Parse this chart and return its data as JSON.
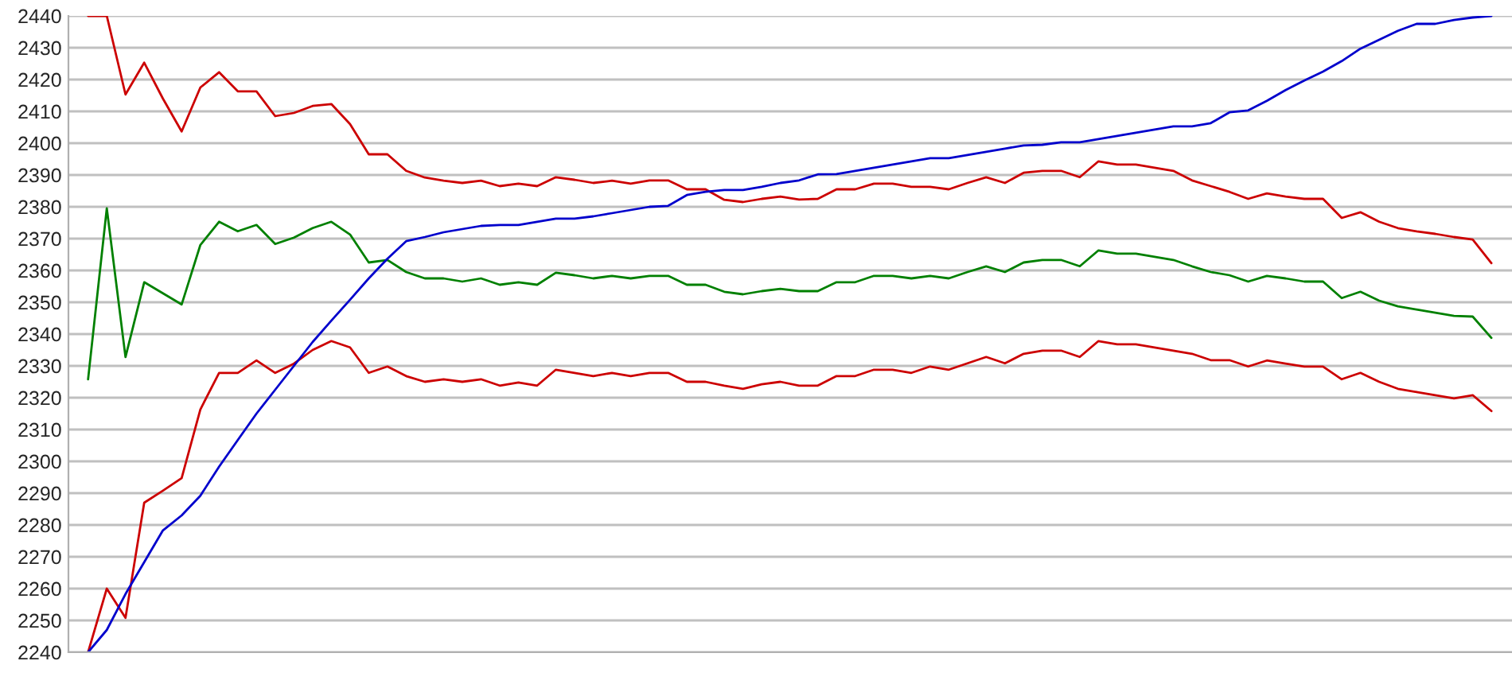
{
  "chart_data": {
    "type": "line",
    "categories": [
      null,
      null,
      null,
      null,
      null,
      null,
      null,
      null,
      null,
      null,
      null,
      null,
      null,
      null,
      null,
      null,
      null,
      null,
      null,
      null,
      null,
      null,
      null,
      null,
      null,
      null,
      null,
      null,
      null,
      null,
      null,
      null,
      null,
      null,
      null,
      null,
      null,
      null,
      null,
      null,
      null,
      null,
      null,
      null,
      null,
      null,
      null,
      null,
      null,
      null,
      null,
      null,
      null,
      null,
      null,
      null,
      null,
      null,
      null,
      null,
      null,
      null,
      null,
      null,
      null,
      null,
      null,
      null,
      null,
      null,
      null,
      null,
      null,
      null,
      null,
      null
    ],
    "ylim": [
      2240,
      2440
    ],
    "yticks": [
      2240,
      2250,
      2260,
      2270,
      2280,
      2290,
      2300,
      2310,
      2320,
      2330,
      2340,
      2350,
      2360,
      2370,
      2380,
      2390,
      2400,
      2410,
      2420,
      2430,
      2440
    ],
    "grid": "y",
    "tick_labels": "y",
    "marker": "none",
    "line_style": "solid",
    "series": [
      {
        "color": "#cc0000",
        "values": [
          2440,
          2440,
          2415.3,
          2425.3,
          2414,
          2403.7,
          2417.5,
          2422.3,
          2416.3,
          2416.3,
          2408.5,
          2409.5,
          2411.7,
          2412.3,
          2406,
          2396.5,
          2396.5,
          2391.3,
          2389.2,
          2388.2,
          2387.5,
          2388.2,
          2386.5,
          2387.3,
          2386.5,
          2389.3,
          2388.5,
          2387.5,
          2388.2,
          2387.3,
          2388.3,
          2388.3,
          2385.5,
          2385.5,
          2382.2,
          2381.5,
          2382.5,
          2383.2,
          2382.3,
          2382.5,
          2385.5,
          2385.5,
          2387.3,
          2387.3,
          2386.3,
          2386.3,
          2385.5,
          2387.5,
          2389.3,
          2387.5,
          2390.7,
          2391.3,
          2391.3,
          2389.3,
          2394.3,
          2393.3,
          2393.3,
          2392.3,
          2391.3,
          2388.3,
          2386.5,
          2384.7,
          2382.5,
          2384.2,
          2383.2,
          2382.5,
          2382.5,
          2376.5,
          2378.3,
          2375.3,
          2373.3,
          2372.3,
          2371.5,
          2370.5,
          2369.7,
          2362.3
        ]
      },
      {
        "color": "#008000",
        "values": [
          2325.8,
          2379.5,
          2332.8,
          2356.3,
          2352.8,
          2349.3,
          2368,
          2375.3,
          2372.3,
          2374.3,
          2368.3,
          2370.3,
          2373.3,
          2375.3,
          2371.3,
          2362.5,
          2363.3,
          2359.5,
          2357.5,
          2357.5,
          2356.5,
          2357.5,
          2355.5,
          2356.3,
          2355.5,
          2359.3,
          2358.5,
          2357.5,
          2358.3,
          2357.5,
          2358.3,
          2358.3,
          2355.5,
          2355.5,
          2353.3,
          2352.5,
          2353.5,
          2354.2,
          2353.5,
          2353.5,
          2356.3,
          2356.3,
          2358.3,
          2358.3,
          2357.5,
          2358.3,
          2357.5,
          2359.5,
          2361.3,
          2359.5,
          2362.5,
          2363.3,
          2363.3,
          2361.3,
          2366.3,
          2365.3,
          2365.3,
          2364.3,
          2363.3,
          2361.3,
          2359.5,
          2358.5,
          2356.5,
          2358.3,
          2357.5,
          2356.5,
          2356.5,
          2351.3,
          2353.3,
          2350.5,
          2348.7,
          2347.7,
          2346.7,
          2345.7,
          2345.5,
          2338.8
        ]
      },
      {
        "color": "#cc0000",
        "values": [
          2240,
          2260,
          2250.8,
          2287,
          2290.8,
          2294.7,
          2316.3,
          2327.8,
          2327.8,
          2331.7,
          2327.8,
          2330.7,
          2335,
          2337.8,
          2335.8,
          2327.8,
          2329.8,
          2326.8,
          2325,
          2325.8,
          2325,
          2325.8,
          2323.8,
          2324.8,
          2323.8,
          2328.8,
          2327.8,
          2326.8,
          2327.8,
          2326.8,
          2327.8,
          2327.8,
          2325,
          2325,
          2323.8,
          2322.8,
          2324.2,
          2325,
          2323.8,
          2323.8,
          2326.8,
          2326.8,
          2328.8,
          2328.8,
          2327.8,
          2329.8,
          2328.8,
          2330.8,
          2332.8,
          2330.8,
          2333.8,
          2334.8,
          2334.8,
          2332.8,
          2337.8,
          2336.8,
          2336.8,
          2335.8,
          2334.8,
          2333.8,
          2331.8,
          2331.8,
          2329.8,
          2331.7,
          2330.7,
          2329.8,
          2329.8,
          2325.8,
          2327.8,
          2325,
          2322.8,
          2321.8,
          2320.8,
          2319.8,
          2320.8,
          2315.8
        ]
      },
      {
        "color": "#0000cc",
        "values": [
          2240,
          2247,
          2258.3,
          2268.3,
          2278.3,
          2283,
          2289.2,
          2298.3,
          2306.7,
          2315,
          2322.5,
          2330,
          2337.5,
          2344.2,
          2350.8,
          2357.5,
          2363.7,
          2369.2,
          2370.5,
          2372,
          2373,
          2374,
          2374.3,
          2374.3,
          2375.3,
          2376.3,
          2376.3,
          2377,
          2378,
          2379,
          2380,
          2380.3,
          2383.7,
          2384.7,
          2385.3,
          2385.3,
          2386.3,
          2387.5,
          2388.3,
          2390.2,
          2390.3,
          2391.3,
          2392.3,
          2393.3,
          2394.3,
          2395.3,
          2395.3,
          2396.3,
          2397.3,
          2398.3,
          2399.3,
          2399.5,
          2400.3,
          2400.3,
          2401.3,
          2402.3,
          2403.3,
          2404.3,
          2405.3,
          2405.3,
          2406.3,
          2409.7,
          2410.3,
          2413.3,
          2416.7,
          2419.7,
          2422.5,
          2425.8,
          2429.7,
          2432.5,
          2435.3,
          2437.5,
          2437.5,
          2438.7,
          2439.5,
          2440
        ]
      }
    ]
  }
}
